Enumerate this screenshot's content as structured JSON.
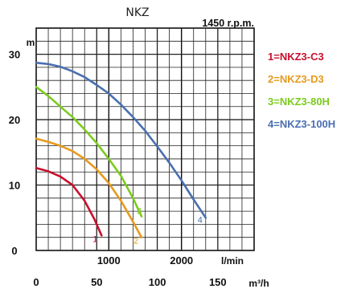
{
  "chart_data": {
    "type": "line",
    "title": "NKZ",
    "subtitle": "1450 r.p.m.",
    "ylabel": "m",
    "xlabel_top": "l/min",
    "xlabel_bottom": "m³/h",
    "ylim": [
      0,
      34
    ],
    "xlim_m3h": [
      0,
      180
    ],
    "y_ticks": [
      "0",
      "10",
      "20",
      "30"
    ],
    "y_tick_values": [
      0,
      10,
      20,
      30
    ],
    "x_ticks_lmin": [
      "1000",
      "2000"
    ],
    "x_ticks_lmin_values": [
      1000,
      2000
    ],
    "x_ticks_m3h": [
      "0",
      "50",
      "100",
      "150"
    ],
    "x_ticks_m3h_values": [
      0,
      50,
      100,
      150
    ],
    "grid": true,
    "legend_position": "right",
    "series": [
      {
        "name": "1=NKZ3-C3",
        "curve_label": "1",
        "color": "#c8102e",
        "x": [
          0,
          10,
          20,
          30,
          40,
          48,
          54
        ],
        "y": [
          12.6,
          12.1,
          11.3,
          10.0,
          7.6,
          4.8,
          2.3
        ]
      },
      {
        "name": "2=NKZ3-D3",
        "curve_label": "2",
        "color": "#e69a1e",
        "x": [
          0,
          10,
          20,
          30,
          40,
          50,
          60,
          70,
          80,
          87
        ],
        "y": [
          17.1,
          16.6,
          16.0,
          15.2,
          14.0,
          12.4,
          10.3,
          7.6,
          4.4,
          2.0
        ]
      },
      {
        "name": "3=NKZ3-80H",
        "curve_label": "3",
        "color": "#7ccb1e",
        "x": [
          0,
          10,
          20,
          30,
          40,
          50,
          60,
          70,
          80,
          87
        ],
        "y": [
          25.0,
          23.6,
          22.0,
          20.4,
          18.5,
          16.4,
          14.0,
          11.4,
          8.0,
          5.2
        ]
      },
      {
        "name": "4=NKZ3-100H",
        "curve_label": "4",
        "color": "#4a6fb0",
        "x": [
          0,
          10,
          20,
          30,
          40,
          50,
          60,
          70,
          80,
          90,
          100,
          110,
          120,
          130,
          140
        ],
        "y": [
          28.7,
          28.5,
          28.1,
          27.4,
          26.5,
          25.3,
          24.0,
          22.3,
          20.4,
          18.3,
          15.9,
          13.4,
          10.7,
          7.8,
          5.0
        ]
      }
    ]
  }
}
